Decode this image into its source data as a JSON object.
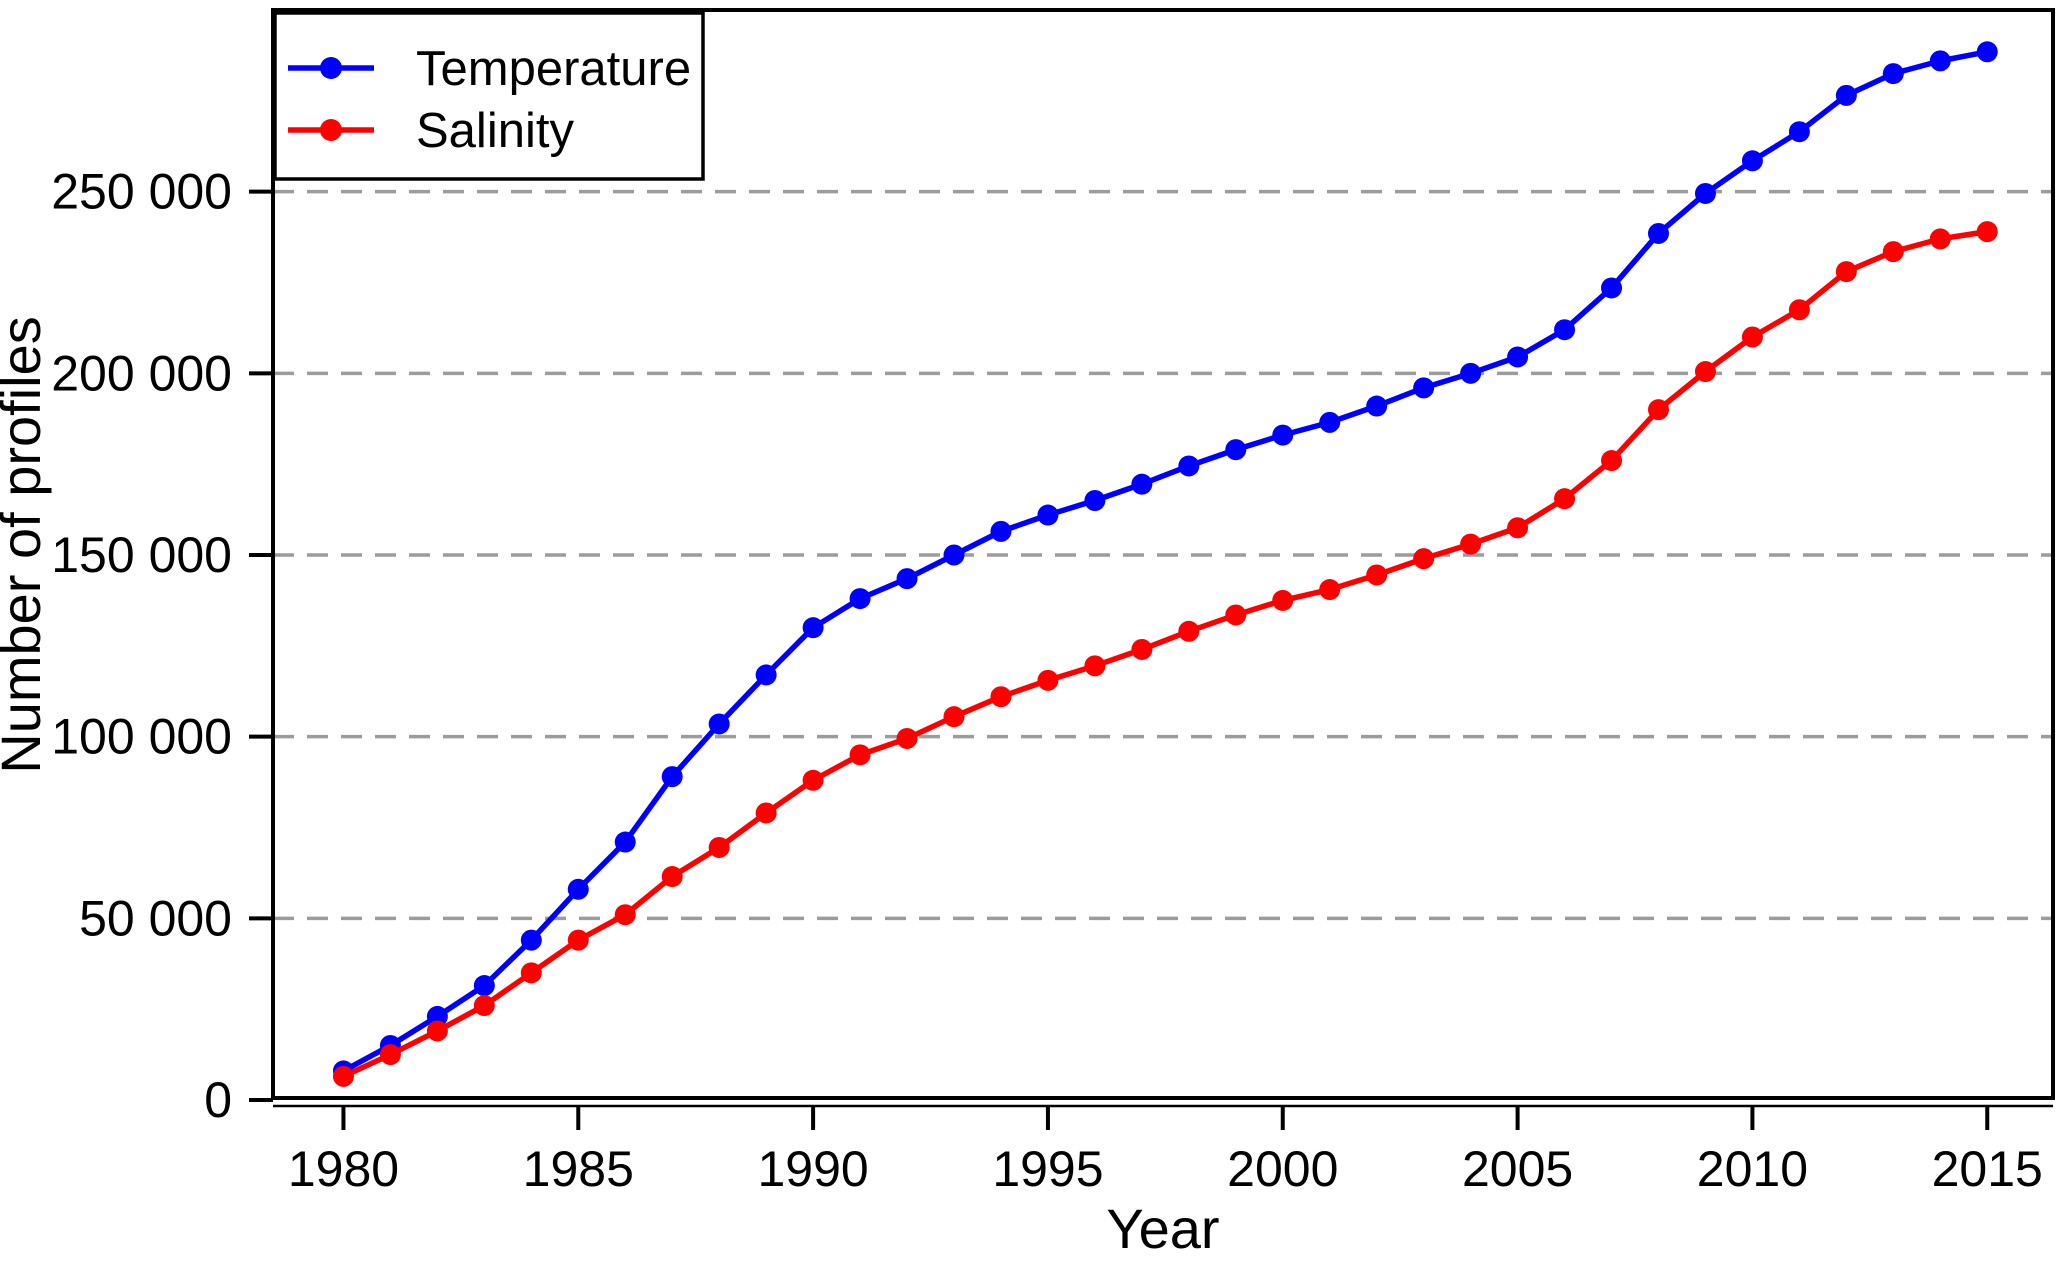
{
  "chart_data": {
    "type": "line",
    "title": "",
    "xlabel": "Year",
    "ylabel": "Number of profiles",
    "x": [
      1980,
      1981,
      1982,
      1983,
      1984,
      1985,
      1986,
      1987,
      1988,
      1989,
      1990,
      1991,
      1992,
      1993,
      1994,
      1995,
      1996,
      1997,
      1998,
      1999,
      2000,
      2001,
      2002,
      2003,
      2004,
      2005,
      2006,
      2007,
      2008,
      2009,
      2010,
      2011,
      2012,
      2013,
      2014,
      2015
    ],
    "series": [
      {
        "name": "Temperature",
        "color": "#0000ff",
        "values": [
          8000,
          15000,
          23000,
          31500,
          44000,
          58000,
          71000,
          89000,
          103500,
          117000,
          130000,
          138000,
          143500,
          150000,
          156500,
          161000,
          165000,
          169500,
          174500,
          179000,
          183000,
          186500,
          191000,
          196000,
          200000,
          204500,
          212000,
          223500,
          238500,
          249500,
          258500,
          266500,
          276500,
          282500,
          286000,
          288500
        ]
      },
      {
        "name": "Salinity",
        "color": "#ff0000",
        "values": [
          6500,
          12500,
          19000,
          26000,
          35000,
          44000,
          51000,
          61500,
          69500,
          79000,
          88000,
          95000,
          99500,
          105500,
          111000,
          115500,
          119500,
          124000,
          129000,
          133500,
          137500,
          140500,
          144500,
          149000,
          153000,
          157500,
          165500,
          176000,
          190000,
          200500,
          210000,
          217500,
          228000,
          233500,
          237000,
          239000
        ]
      }
    ],
    "xlim": [
      1978.5,
      2016.4
    ],
    "ylim": [
      0,
      300000
    ],
    "x_ticks": [
      1980,
      1985,
      1990,
      1995,
      2000,
      2005,
      2010,
      2015
    ],
    "x_tick_labels": [
      "1980",
      "1985",
      "1990",
      "1995",
      "2000",
      "2005",
      "2010",
      "2015"
    ],
    "y_ticks": [
      0,
      50000,
      100000,
      150000,
      200000,
      250000
    ],
    "y_tick_labels": [
      "0",
      "50 000",
      "100 000",
      "150 000",
      "200 000",
      "250 000"
    ],
    "grid": "horizontal-dashed",
    "grid_color": "#9c9c9c",
    "axis_color": "#000000",
    "background_color": "#ffffff",
    "legend_position": "top-left",
    "marker": "filled-circle"
  }
}
